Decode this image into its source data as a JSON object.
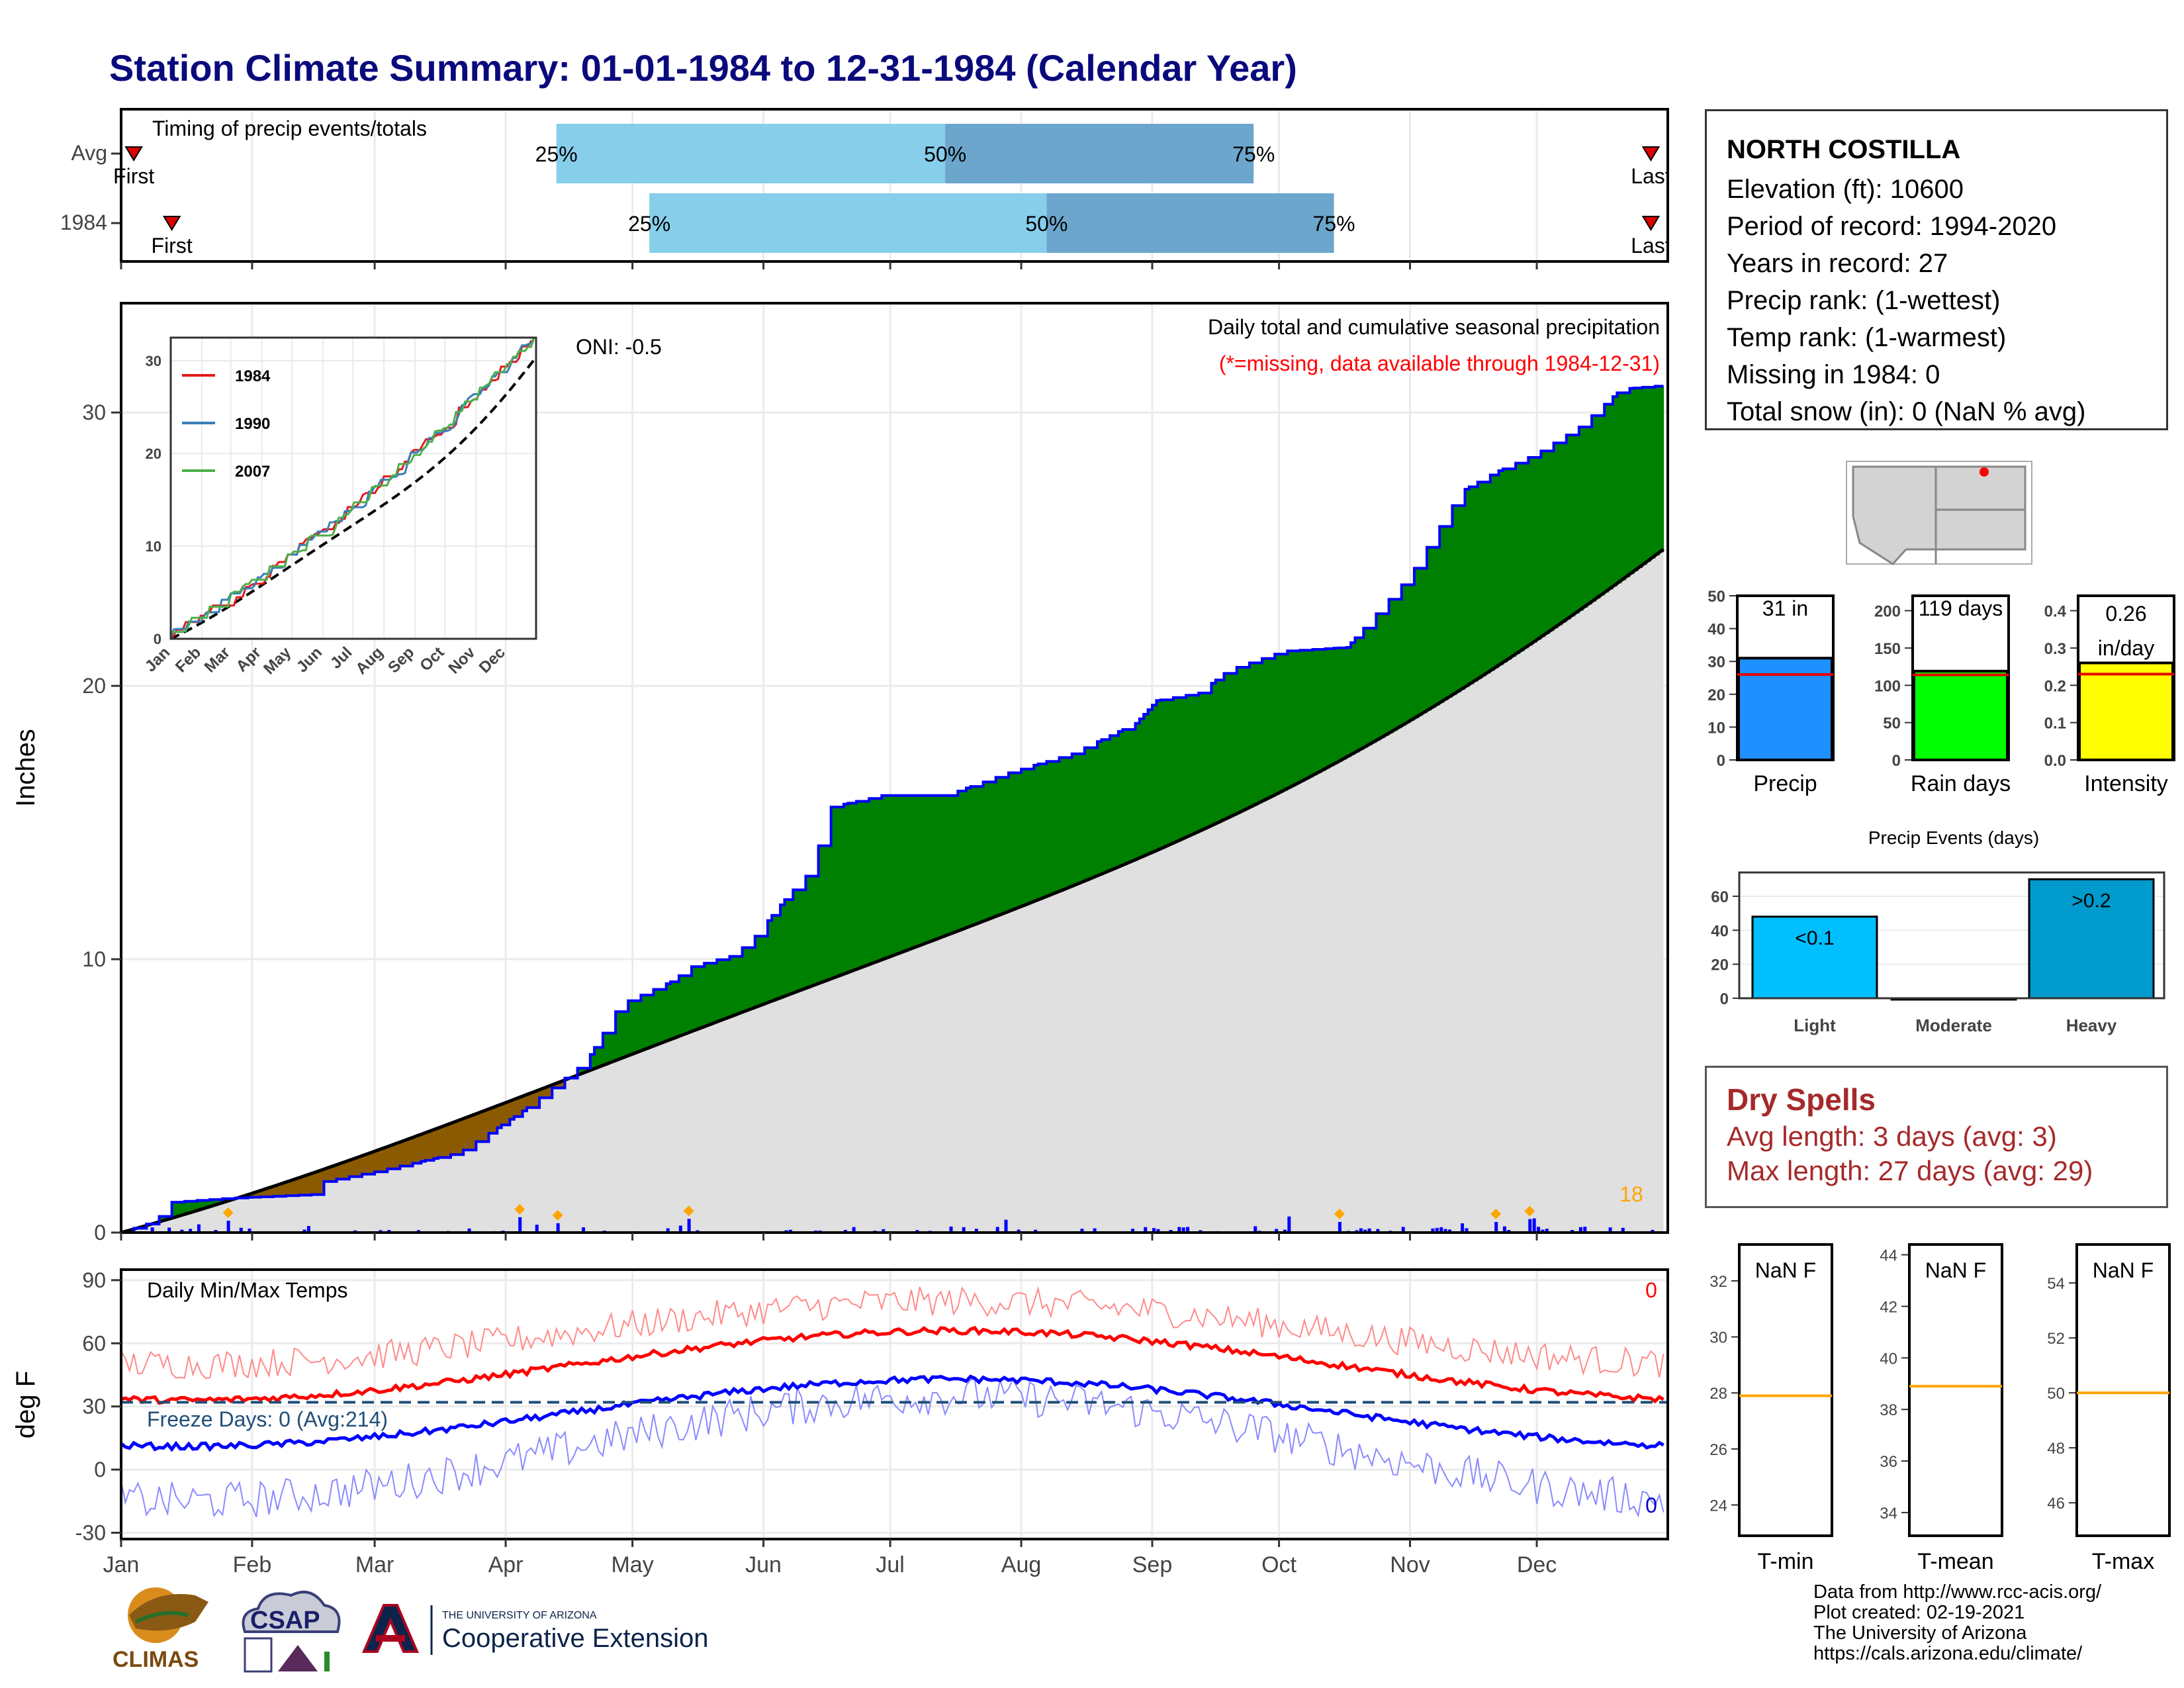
{
  "title": "Station Climate Summary: 01-01-1984 to 12-31-1984 (Calendar Year)",
  "colors": {
    "title": "#0a0a7d",
    "avg_bar_light": "#87ceeb",
    "avg_bar_dark": "#6ca6cd",
    "precip_line": "#0000ff",
    "above_avg_fill": "#008000",
    "below_avg_fill": "#8b5a00",
    "avg_fill": "#e0e0e0",
    "tmax": "#ff0000",
    "tmin": "#0000ff",
    "orange": "#ffa500"
  },
  "timing_panel": {
    "label": "Timing of precip events/totals",
    "rows": [
      {
        "name": "Avg",
        "q25": "25%",
        "q50": "50%",
        "q75": "75%",
        "first": "First",
        "last": "Last",
        "first_doy": 3,
        "q25_doy": 103,
        "q50_doy": 195,
        "q75_doy": 268,
        "last_doy": 362
      },
      {
        "name": "1984",
        "q25": "25%",
        "q50": "50%",
        "q75": "75%",
        "first": "First",
        "last": "Last",
        "first_doy": 12,
        "q25_doy": 125,
        "q50_doy": 219,
        "q75_doy": 287,
        "last_doy": 362
      }
    ]
  },
  "precip_panel": {
    "ylabel": "Inches",
    "oni": "ONI: -0.5",
    "subtitle": "Daily total and cumulative seasonal precipitation",
    "missing_note": "(*=missing, data available through 1984-12-31)",
    "y_ticks": [
      "0",
      "10",
      "20",
      "30"
    ],
    "count_label": "18",
    "ylim": [
      0,
      34
    ]
  },
  "inset": {
    "y_ticks": [
      "0",
      "10",
      "20",
      "30"
    ],
    "months": [
      "Jan",
      "Feb",
      "Mar",
      "Apr",
      "May",
      "Jun",
      "Jul",
      "Aug",
      "Sep",
      "Oct",
      "Nov",
      "Dec"
    ],
    "legend": [
      {
        "name": "1984",
        "color": "#e41a1c"
      },
      {
        "name": "1990",
        "color": "#377eb8"
      },
      {
        "name": "2007",
        "color": "#4daf4a"
      }
    ]
  },
  "temp_panel": {
    "ylabel": "deg F",
    "label": "Daily Min/Max Temps",
    "freeze_label": "Freeze Days: 0 (Avg:214)",
    "y_ticks": [
      "-30",
      "0",
      "30",
      "60",
      "90"
    ],
    "max_count": "0",
    "min_count": "0",
    "freeze_line": 32
  },
  "months": [
    "Jan",
    "Feb",
    "Mar",
    "Apr",
    "May",
    "Jun",
    "Jul",
    "Aug",
    "Sep",
    "Oct",
    "Nov",
    "Dec"
  ],
  "info": {
    "station": "NORTH COSTILLA",
    "lines": [
      "Elevation (ft): 10600",
      "Period of record: 1994-2020",
      "Years in record: 27",
      "Precip rank:  (1-wettest)",
      "Temp rank:  (1-warmest)",
      "Missing in 1984: 0",
      "Total snow (in): 0 (NaN % avg)"
    ]
  },
  "summary_bars": [
    {
      "name": "Precip",
      "label": "31 in",
      "value": 31,
      "avg": 26,
      "ylim": [
        0,
        50
      ],
      "ticks": [
        "0",
        "10",
        "20",
        "30",
        "40",
        "50"
      ],
      "tick_vals": [
        0,
        10,
        20,
        30,
        40,
        50
      ],
      "color": "#1e90ff"
    },
    {
      "name": "Rain days",
      "label": "119 days",
      "value": 119,
      "avg": 114,
      "ylim": [
        0,
        220
      ],
      "ticks": [
        "0",
        "50",
        "100",
        "150",
        "200"
      ],
      "tick_vals": [
        0,
        50,
        100,
        150,
        200
      ],
      "color": "#00ff00"
    },
    {
      "name": "Intensity",
      "label": "0.26",
      "label2": "in/day",
      "value": 0.26,
      "avg": 0.23,
      "ylim": [
        0,
        0.44
      ],
      "ticks": [
        "0.0",
        "0.1",
        "0.2",
        "0.3",
        "0.4"
      ],
      "tick_vals": [
        0,
        0.1,
        0.2,
        0.3,
        0.4
      ],
      "color": "#ffff00"
    }
  ],
  "events": {
    "title": "Precip Events (days)",
    "categories": [
      "Light",
      "Moderate",
      "Heavy"
    ],
    "labels": [
      "<0.1",
      "",
      ">0.2"
    ],
    "values": [
      48,
      0,
      70
    ],
    "ticks": [
      "0",
      "20",
      "40",
      "60"
    ],
    "tick_vals": [
      0,
      20,
      40,
      60
    ],
    "ylim": [
      0,
      74
    ],
    "colors": [
      "#00bfff",
      "#00bfff",
      "#009acd"
    ]
  },
  "dry_spells": {
    "title": "Dry Spells",
    "avg": "Avg length: 3 days (avg: 3)",
    "max": "Max length: 27 days (avg: 29)"
  },
  "temp_bars": [
    {
      "name": "T-min",
      "label": "NaN F",
      "ticks": [
        "24",
        "26",
        "28",
        "30",
        "32"
      ],
      "tick_vals": [
        24,
        26,
        28,
        30,
        32
      ],
      "ylim": [
        22.9,
        33.3
      ],
      "avg": 27.9
    },
    {
      "name": "T-mean",
      "label": "NaN F",
      "ticks": [
        "34",
        "36",
        "38",
        "40",
        "42",
        "44"
      ],
      "tick_vals": [
        34,
        36,
        38,
        40,
        42,
        44
      ],
      "ylim": [
        33.1,
        44.4
      ],
      "avg": 38.9
    },
    {
      "name": "T-max",
      "label": "NaN F",
      "ticks": [
        "46",
        "48",
        "50",
        "52",
        "54"
      ],
      "tick_vals": [
        46,
        48,
        50,
        52,
        54
      ],
      "ylim": [
        44.8,
        55.4
      ],
      "avg": 50.0
    }
  ],
  "footer": {
    "lines": [
      "Data from http://www.rcc-acis.org/",
      "Plot created: 02-19-2021",
      "The University of Arizona",
      "https://cals.arizona.edu/climate/"
    ]
  },
  "logos": {
    "climas": "CLIMAS",
    "csap": "CSAP",
    "ua_small": "THE UNIVERSITY OF ARIZONA",
    "ua_big": "Cooperative Extension"
  }
}
